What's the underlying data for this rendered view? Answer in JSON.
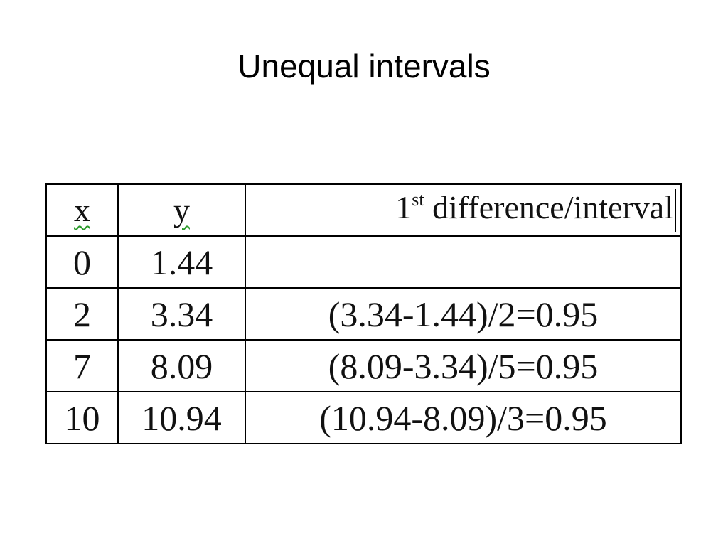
{
  "slide": {
    "title": "Unequal intervals"
  },
  "table": {
    "headers": {
      "x": "x",
      "y": "y",
      "diff_prefix": "1",
      "diff_sup": "st",
      "diff_rest": " difference/interval"
    },
    "rows": [
      {
        "x": "0",
        "y": "1.44",
        "diff": ""
      },
      {
        "x": "2",
        "y": "3.34",
        "diff": "(3.34-1.44)/2=0.95"
      },
      {
        "x": "7",
        "y": "8.09",
        "diff": "(8.09-3.34)/5=0.95"
      },
      {
        "x": "10",
        "y": "10.94",
        "diff": "(10.94-8.09)/3=0.95"
      }
    ]
  }
}
